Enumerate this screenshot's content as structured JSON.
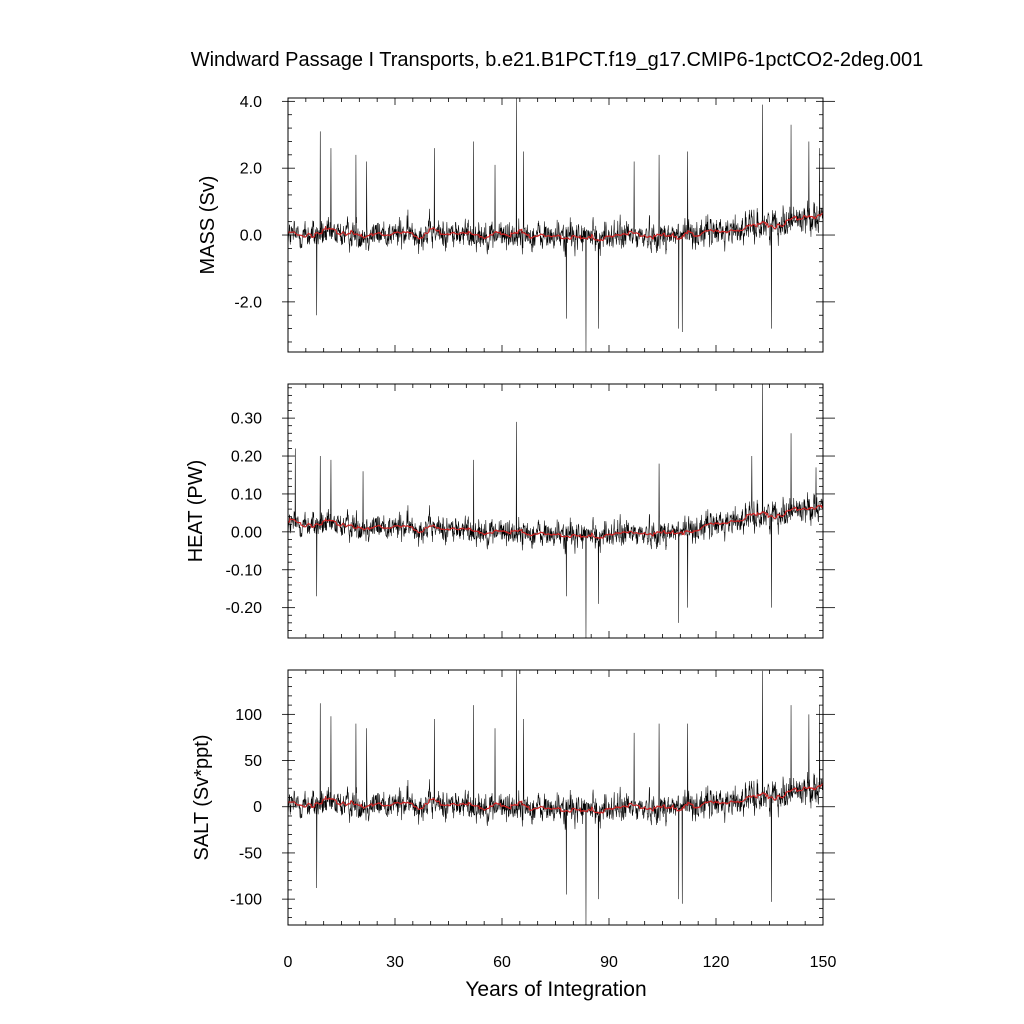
{
  "figure": {
    "title": "Windward Passage I Transports, b.e21.B1PCT.f19_g17.CMIP6-1pctCO2-2deg.001",
    "xlabel": "Years of Integration"
  },
  "colors": {
    "monthly_series": "#000000",
    "smoothed_series": "#cc2222",
    "axes": "#000000"
  },
  "chart_data": [
    {
      "type": "line",
      "title": "",
      "ylabel": "MASS (Sv)",
      "xlim": [
        0,
        150
      ],
      "ylim": [
        -3.5,
        4.1
      ],
      "xticks": [
        0,
        30,
        60,
        90,
        120,
        150
      ],
      "xtick_labels": [
        "0",
        "30",
        "60",
        "90",
        "120",
        "150"
      ],
      "yticks": [
        -2.0,
        0.0,
        2.0,
        4.0
      ],
      "ytick_labels": [
        "-2.0",
        "0.0",
        "2.0",
        "4.0"
      ],
      "noise_amplitude": 0.55,
      "trend": [
        [
          0,
          0.0
        ],
        [
          40,
          0.05
        ],
        [
          80,
          -0.05
        ],
        [
          110,
          0.0
        ],
        [
          125,
          0.15
        ],
        [
          150,
          0.6
        ]
      ],
      "spikes": [
        [
          8.0,
          -2.4
        ],
        [
          9.0,
          3.1
        ],
        [
          12.0,
          2.6
        ],
        [
          19.0,
          2.4
        ],
        [
          22.0,
          2.2
        ],
        [
          41.0,
          2.6
        ],
        [
          52.0,
          2.8
        ],
        [
          58.0,
          2.1
        ],
        [
          64.0,
          4.1
        ],
        [
          66.0,
          2.5
        ],
        [
          78.0,
          -2.5
        ],
        [
          83.5,
          -3.5
        ],
        [
          87.0,
          -2.8
        ],
        [
          97.0,
          2.2
        ],
        [
          104.0,
          2.4
        ],
        [
          109.5,
          -2.8
        ],
        [
          110.5,
          -2.9
        ],
        [
          112.0,
          2.5
        ],
        [
          133.0,
          3.9
        ],
        [
          135.5,
          -2.8
        ],
        [
          141.0,
          3.3
        ],
        [
          146.0,
          2.8
        ],
        [
          149.0,
          2.6
        ]
      ],
      "series": [
        {
          "label": "monthly",
          "color": "#000000"
        },
        {
          "label": "smoothed",
          "color": "#cc2222"
        }
      ]
    },
    {
      "type": "line",
      "title": "",
      "ylabel": "HEAT (PW)",
      "xlim": [
        0,
        150
      ],
      "ylim": [
        -0.28,
        0.39
      ],
      "xticks": [
        0,
        30,
        60,
        90,
        120,
        150
      ],
      "xtick_labels": [
        "0",
        "30",
        "60",
        "90",
        "120",
        "150"
      ],
      "yticks": [
        -0.2,
        -0.1,
        0.0,
        0.1,
        0.2,
        0.3
      ],
      "ytick_labels": [
        "-0.20",
        "-0.10",
        "0.00",
        "0.10",
        "0.20",
        "0.30"
      ],
      "noise_amplitude": 0.045,
      "trend": [
        [
          0,
          0.02
        ],
        [
          40,
          0.01
        ],
        [
          80,
          -0.01
        ],
        [
          110,
          0.0
        ],
        [
          125,
          0.03
        ],
        [
          150,
          0.07
        ]
      ],
      "spikes": [
        [
          2.0,
          0.22
        ],
        [
          8.0,
          -0.17
        ],
        [
          9.0,
          0.2
        ],
        [
          12.0,
          0.19
        ],
        [
          21.0,
          0.16
        ],
        [
          52.0,
          0.19
        ],
        [
          64.0,
          0.29
        ],
        [
          78.0,
          -0.17
        ],
        [
          83.5,
          -0.28
        ],
        [
          87.0,
          -0.19
        ],
        [
          104.0,
          0.18
        ],
        [
          109.5,
          -0.24
        ],
        [
          112.0,
          -0.2
        ],
        [
          130.0,
          0.2
        ],
        [
          133.0,
          0.39
        ],
        [
          135.5,
          -0.2
        ],
        [
          141.0,
          0.26
        ],
        [
          148.0,
          0.17
        ]
      ],
      "series": [
        {
          "label": "monthly",
          "color": "#000000"
        },
        {
          "label": "smoothed",
          "color": "#cc2222"
        }
      ]
    },
    {
      "type": "line",
      "title": "",
      "ylabel": "SALT (Sv*ppt)",
      "xlim": [
        0,
        150
      ],
      "ylim": [
        -128,
        148
      ],
      "xticks": [
        0,
        30,
        60,
        90,
        120,
        150
      ],
      "xtick_labels": [
        "0",
        "30",
        "60",
        "90",
        "120",
        "150"
      ],
      "yticks": [
        -100,
        -50,
        0,
        50,
        100
      ],
      "ytick_labels": [
        "-100",
        "-50",
        "0",
        "50",
        "100"
      ],
      "noise_amplitude": 20,
      "trend": [
        [
          0,
          2
        ],
        [
          40,
          3
        ],
        [
          80,
          -3
        ],
        [
          110,
          0
        ],
        [
          125,
          6
        ],
        [
          150,
          22
        ]
      ],
      "spikes": [
        [
          8.0,
          -88
        ],
        [
          9.0,
          112
        ],
        [
          12.0,
          98
        ],
        [
          19.0,
          90
        ],
        [
          22.0,
          85
        ],
        [
          41.0,
          95
        ],
        [
          52.0,
          110
        ],
        [
          58.0,
          85
        ],
        [
          64.0,
          148
        ],
        [
          66.0,
          95
        ],
        [
          78.0,
          -95
        ],
        [
          83.5,
          -128
        ],
        [
          87.0,
          -100
        ],
        [
          97.0,
          80
        ],
        [
          104.0,
          90
        ],
        [
          109.5,
          -100
        ],
        [
          110.5,
          -105
        ],
        [
          112.0,
          90
        ],
        [
          133.0,
          147
        ],
        [
          135.5,
          -103
        ],
        [
          141.0,
          110
        ],
        [
          146.0,
          100
        ],
        [
          149.0,
          110
        ]
      ],
      "series": [
        {
          "label": "monthly",
          "color": "#000000"
        },
        {
          "label": "smoothed",
          "color": "#cc2222"
        }
      ]
    }
  ]
}
